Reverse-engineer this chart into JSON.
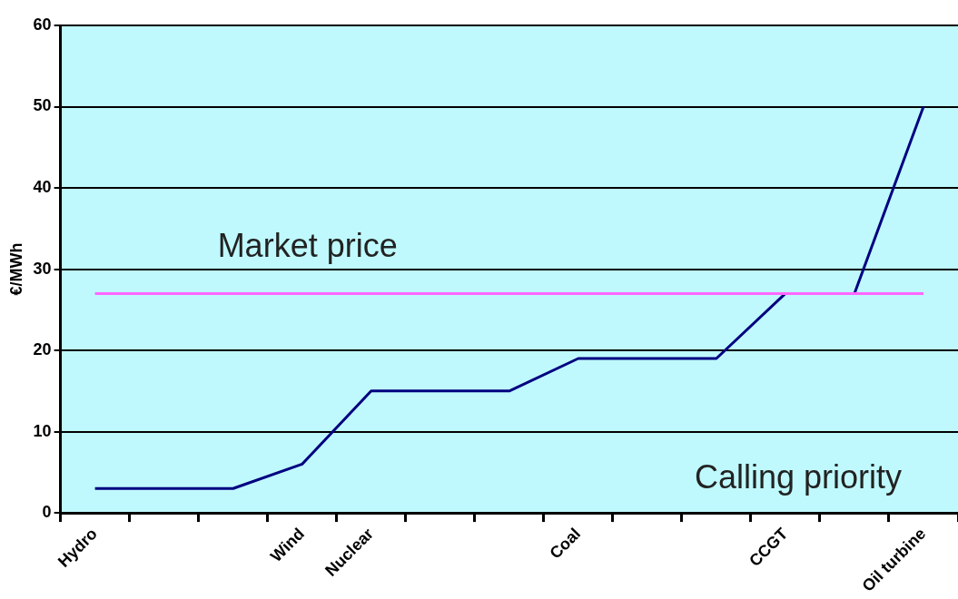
{
  "chart_data": {
    "type": "line",
    "ylabel": "€/MWh",
    "categories": [
      "Hydro",
      null,
      null,
      "Wind",
      "Nuclear",
      null,
      null,
      "Coal",
      null,
      null,
      "CCGT",
      null,
      "Oil turbine"
    ],
    "series": [
      {
        "color": "#000080",
        "values": [
          3,
          3,
          3,
          6,
          15,
          15,
          15,
          19,
          19,
          19,
          27,
          27,
          50
        ]
      }
    ],
    "ylim": [
      0,
      60
    ],
    "yticks": [
      0,
      10,
      20,
      30,
      40,
      50,
      60
    ],
    "grid": "y",
    "legend": false,
    "marker": "none",
    "line_style": "solid",
    "ref_lines": [
      {
        "axis": "y",
        "value": 27,
        "label": "Market price",
        "color": "#ff66ff"
      }
    ],
    "annotations": [
      "Calling priority"
    ]
  }
}
